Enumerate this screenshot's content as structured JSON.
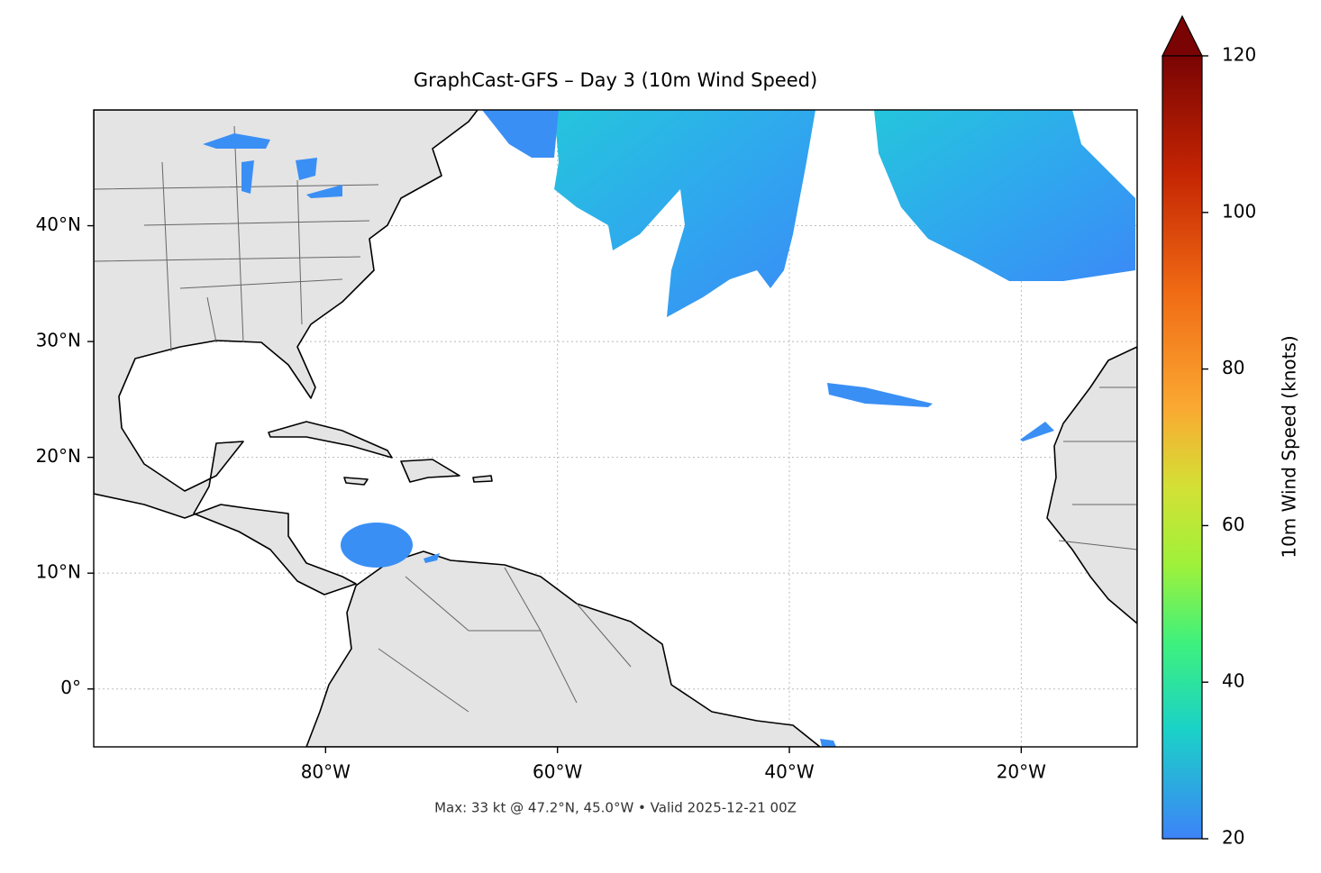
{
  "title": "GraphCast-GFS – Day 3 (10m Wind Speed)",
  "footer": "Max: 33 kt @ 47.2°N, 45.0°W • Valid 2025-12-21 00Z",
  "map": {
    "lonlim": [
      -100,
      -10
    ],
    "latlim": [
      -5,
      50
    ],
    "lonticks": [
      {
        "value": -80,
        "label": "80°W"
      },
      {
        "value": -60,
        "label": "60°W"
      },
      {
        "value": -40,
        "label": "40°W"
      },
      {
        "value": -20,
        "label": "20°W"
      }
    ],
    "latticks": [
      {
        "value": 0,
        "label": "0°"
      },
      {
        "value": 10,
        "label": "10°N"
      },
      {
        "value": 20,
        "label": "20°N"
      },
      {
        "value": 30,
        "label": "30°N"
      },
      {
        "value": 40,
        "label": "40°N"
      }
    ],
    "grid": true
  },
  "colorbar": {
    "label": "10m Wind Speed (knots)",
    "lim": [
      20,
      120
    ],
    "ticks": [
      20,
      40,
      60,
      80,
      100,
      120
    ]
  }
}
